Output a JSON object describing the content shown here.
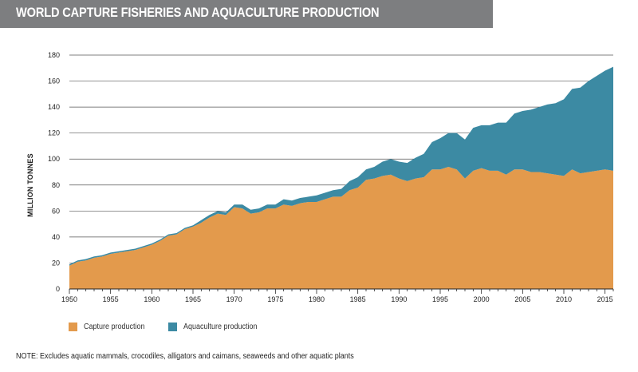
{
  "header": {
    "title": "WORLD CAPTURE FISHERIES AND AQUACULTURE PRODUCTION"
  },
  "chart_data": {
    "type": "area",
    "stacked": true,
    "title": "WORLD CAPTURE FISHERIES AND AQUACULTURE PRODUCTION",
    "xlabel": "",
    "ylabel": "MILLION TONNES",
    "xlim": [
      1950,
      2016
    ],
    "ylim": [
      0,
      180
    ],
    "x_ticks": [
      1950,
      1955,
      1960,
      1965,
      1970,
      1975,
      1980,
      1985,
      1990,
      1995,
      2000,
      2005,
      2010,
      2015
    ],
    "y_ticks": [
      0,
      20,
      40,
      60,
      80,
      100,
      120,
      140,
      160,
      180
    ],
    "grid": true,
    "legend_position": "bottom-left",
    "x": [
      1950,
      1951,
      1952,
      1953,
      1954,
      1955,
      1956,
      1957,
      1958,
      1959,
      1960,
      1961,
      1962,
      1963,
      1964,
      1965,
      1966,
      1967,
      1968,
      1969,
      1970,
      1971,
      1972,
      1973,
      1974,
      1975,
      1976,
      1977,
      1978,
      1979,
      1980,
      1981,
      1982,
      1983,
      1984,
      1985,
      1986,
      1987,
      1988,
      1989,
      1990,
      1991,
      1992,
      1993,
      1994,
      1995,
      1996,
      1997,
      1998,
      1999,
      2000,
      2001,
      2002,
      2003,
      2004,
      2005,
      2006,
      2007,
      2008,
      2009,
      2010,
      2011,
      2012,
      2013,
      2014,
      2015,
      2016
    ],
    "series": [
      {
        "name": "Capture production",
        "color": "#e39a4c",
        "values": [
          18,
          21,
          22,
          24,
          25,
          27,
          28,
          29,
          30,
          32,
          34,
          37,
          41,
          42,
          46,
          48,
          51,
          55,
          58,
          57,
          63,
          62,
          58,
          59,
          62,
          62,
          65,
          64,
          66,
          67,
          67,
          69,
          71,
          71,
          76,
          78,
          84,
          85,
          87,
          88,
          85,
          83,
          85,
          86,
          92,
          92,
          94,
          92,
          85,
          91,
          93,
          91,
          91,
          88,
          92,
          92,
          90,
          90,
          89,
          88,
          87,
          92,
          89,
          90,
          91,
          92,
          91
        ]
      },
      {
        "name": "Aquaculture production",
        "color": "#3c8aa3",
        "values": [
          1,
          1,
          1,
          1,
          1,
          1,
          1,
          1,
          1,
          1,
          1,
          1,
          1,
          1,
          1,
          1,
          2,
          2,
          2,
          2,
          2,
          3,
          3,
          3,
          3,
          3,
          4,
          4,
          4,
          4,
          5,
          5,
          5,
          6,
          7,
          8,
          8,
          9,
          11,
          12,
          13,
          14,
          16,
          18,
          21,
          24,
          26,
          28,
          30,
          33,
          33,
          35,
          37,
          40,
          43,
          45,
          48,
          50,
          53,
          55,
          59,
          62,
          66,
          70,
          73,
          76,
          80
        ]
      }
    ]
  },
  "legend": {
    "items": [
      {
        "label": "Capture production",
        "color": "#e39a4c"
      },
      {
        "label": "Aquaculture production",
        "color": "#3c8aa3"
      }
    ]
  },
  "note": "NOTE: Excludes aquatic mammals, crocodiles, alligators and caimans, seaweeds and other aquatic plants"
}
